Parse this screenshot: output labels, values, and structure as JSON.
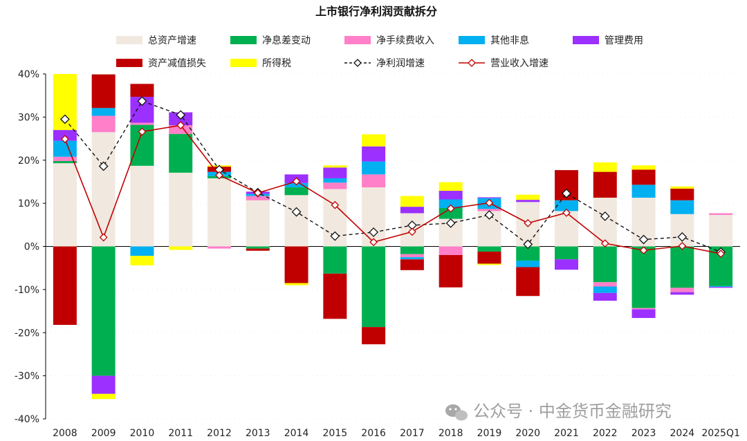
{
  "chart_data": {
    "type": "bar",
    "title": "上市银行净利润贡献拆分",
    "xlabel": "",
    "ylabel": "",
    "ylim": [
      -0.4,
      0.4
    ],
    "y_ticks": [
      "40%",
      "30%",
      "20%",
      "10%",
      "0%",
      "-10%",
      "-20%",
      "-30%",
      "-40%"
    ],
    "categories": [
      "2008",
      "2009",
      "2010",
      "2011",
      "2012",
      "2013",
      "2014",
      "2015",
      "2016",
      "2017",
      "2018",
      "2019",
      "2020",
      "2021",
      "2022",
      "2023",
      "2024",
      "2025Q1"
    ],
    "stacked": true,
    "legend_position": "top",
    "series": [
      {
        "name": "总资产增速",
        "kind": "bar",
        "color": "#f1e8df",
        "values": [
          0.193,
          0.265,
          0.187,
          0.171,
          0.158,
          0.107,
          0.119,
          0.133,
          0.137,
          0.077,
          0.064,
          0.082,
          0.103,
          0.082,
          0.113,
          0.113,
          0.075,
          0.073
        ]
      },
      {
        "name": "净息差变动",
        "kind": "bar",
        "color": "#00b050",
        "values": [
          0.005,
          -0.3,
          0.095,
          0.09,
          0.005,
          -0.005,
          0.018,
          -0.063,
          -0.187,
          -0.018,
          0.025,
          -0.012,
          -0.033,
          -0.03,
          -0.083,
          -0.143,
          -0.096,
          -0.092
        ]
      },
      {
        "name": "净手续费收入",
        "kind": "bar",
        "color": "#ff7fc8",
        "values": [
          0.01,
          0.038,
          0.005,
          0.02,
          -0.005,
          0.01,
          0.0,
          0.015,
          0.03,
          -0.007,
          -0.02,
          0.005,
          0.0,
          0.0,
          -0.01,
          -0.003,
          -0.01,
          0.004
        ]
      },
      {
        "name": "其他非息",
        "kind": "bar",
        "color": "#00b0f0",
        "values": [
          0.037,
          0.018,
          -0.022,
          0.0,
          0.01,
          0.005,
          0.01,
          0.01,
          0.03,
          -0.005,
          0.02,
          0.025,
          -0.015,
          0.025,
          -0.015,
          0.03,
          0.032,
          -0.002
        ]
      },
      {
        "name": "管理费用",
        "kind": "bar",
        "color": "#9b30ff",
        "values": [
          0.025,
          -0.042,
          0.06,
          0.03,
          0.0,
          0.005,
          0.02,
          0.025,
          0.035,
          0.015,
          0.02,
          0.002,
          0.005,
          -0.024,
          -0.018,
          -0.02,
          -0.006,
          -0.002
        ]
      },
      {
        "name": "资产减值损失",
        "kind": "bar",
        "color": "#c00000",
        "values": [
          -0.182,
          0.078,
          0.03,
          0.0,
          0.012,
          -0.005,
          -0.085,
          -0.105,
          -0.04,
          -0.025,
          -0.075,
          -0.028,
          -0.067,
          0.07,
          0.06,
          0.035,
          0.027,
          0.0
        ]
      },
      {
        "name": "所得税",
        "kind": "bar",
        "color": "#ffff00",
        "values": [
          0.13,
          -0.012,
          -0.022,
          -0.008,
          0.003,
          0.0,
          -0.005,
          0.005,
          0.028,
          0.025,
          0.02,
          -0.003,
          0.012,
          0.0,
          0.022,
          0.01,
          0.005,
          0.0
        ]
      },
      {
        "name": "净利润增速",
        "kind": "line",
        "color": "#111111",
        "dashed": true,
        "values": [
          0.295,
          0.186,
          0.337,
          0.305,
          0.178,
          0.125,
          0.08,
          0.024,
          0.033,
          0.049,
          0.054,
          0.073,
          0.005,
          0.123,
          0.07,
          0.016,
          0.022,
          -0.013
        ]
      },
      {
        "name": "营业收入增速",
        "kind": "line",
        "color": "#c00000",
        "dashed": false,
        "values": [
          0.249,
          0.021,
          0.266,
          0.281,
          0.165,
          0.124,
          0.151,
          0.096,
          0.01,
          0.034,
          0.088,
          0.101,
          0.054,
          0.078,
          0.007,
          -0.009,
          0.001,
          -0.017
        ]
      }
    ]
  },
  "watermark": {
    "icon": "wechat-icon",
    "text": "公众号 · 中金货币金融研究"
  }
}
